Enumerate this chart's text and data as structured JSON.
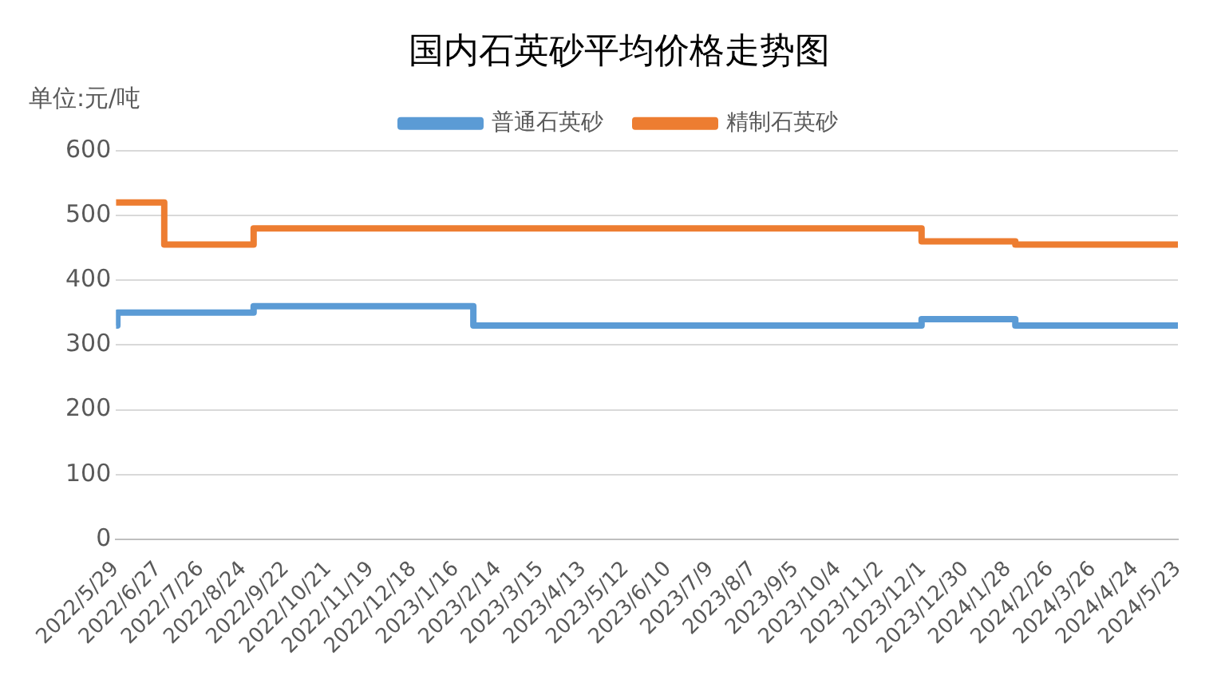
{
  "chart_data": {
    "type": "step",
    "title": "国内石英砂平均价格走势图",
    "ylabel": "单位:元/吨",
    "series": [
      {
        "name": "普通石英砂",
        "color": "#5b9bd5",
        "x": [
          "2022-05-29",
          "2022-05-30",
          "2022-08-31",
          "2023-01-28",
          "2023-11-30",
          "2024-02-02",
          "2024-05-23"
        ],
        "values": [
          330,
          350,
          360,
          330,
          340,
          330,
          330
        ]
      },
      {
        "name": "精制石英砂",
        "color": "#ed7d31",
        "x": [
          "2022-05-29",
          "2022-07-01",
          "2022-08-31",
          "2023-11-30",
          "2024-02-02",
          "2024-05-23"
        ],
        "values": [
          520,
          455,
          480,
          460,
          455,
          455
        ]
      }
    ],
    "xlim": [
      "2022-05-29",
      "2024-05-23"
    ],
    "xticks": [
      {
        "value": "2022-05-29",
        "label": "2022/5/29"
      },
      {
        "value": "2022-06-27",
        "label": "2022/6/27"
      },
      {
        "value": "2022-07-26",
        "label": "2022/7/26"
      },
      {
        "value": "2022-08-24",
        "label": "2022/8/24"
      },
      {
        "value": "2022-09-22",
        "label": "2022/9/22"
      },
      {
        "value": "2022-10-21",
        "label": "2022/10/21"
      },
      {
        "value": "2022-11-19",
        "label": "2022/11/19"
      },
      {
        "value": "2022-12-18",
        "label": "2022/12/18"
      },
      {
        "value": "2023-01-16",
        "label": "2023/1/16"
      },
      {
        "value": "2023-02-14",
        "label": "2023/2/14"
      },
      {
        "value": "2023-03-15",
        "label": "2023/3/15"
      },
      {
        "value": "2023-04-13",
        "label": "2023/4/13"
      },
      {
        "value": "2023-05-12",
        "label": "2023/5/12"
      },
      {
        "value": "2023-06-10",
        "label": "2023/6/10"
      },
      {
        "value": "2023-07-09",
        "label": "2023/7/9"
      },
      {
        "value": "2023-08-07",
        "label": "2023/8/7"
      },
      {
        "value": "2023-09-05",
        "label": "2023/9/5"
      },
      {
        "value": "2023-10-04",
        "label": "2023/10/4"
      },
      {
        "value": "2023-11-02",
        "label": "2023/11/2"
      },
      {
        "value": "2023-12-01",
        "label": "2023/12/1"
      },
      {
        "value": "2023-12-30",
        "label": "2023/12/30"
      },
      {
        "value": "2024-01-28",
        "label": "2024/1/28"
      },
      {
        "value": "2024-02-26",
        "label": "2024/2/26"
      },
      {
        "value": "2024-03-26",
        "label": "2024/3/26"
      },
      {
        "value": "2024-04-24",
        "label": "2024/4/24"
      },
      {
        "value": "2024-05-23",
        "label": "2024/5/23"
      }
    ],
    "ylim": [
      0,
      600
    ],
    "yticks": [
      0,
      100,
      200,
      300,
      400,
      500,
      600
    ],
    "grid": "y",
    "legend": "top",
    "marker": "none",
    "line_style": "solid"
  }
}
